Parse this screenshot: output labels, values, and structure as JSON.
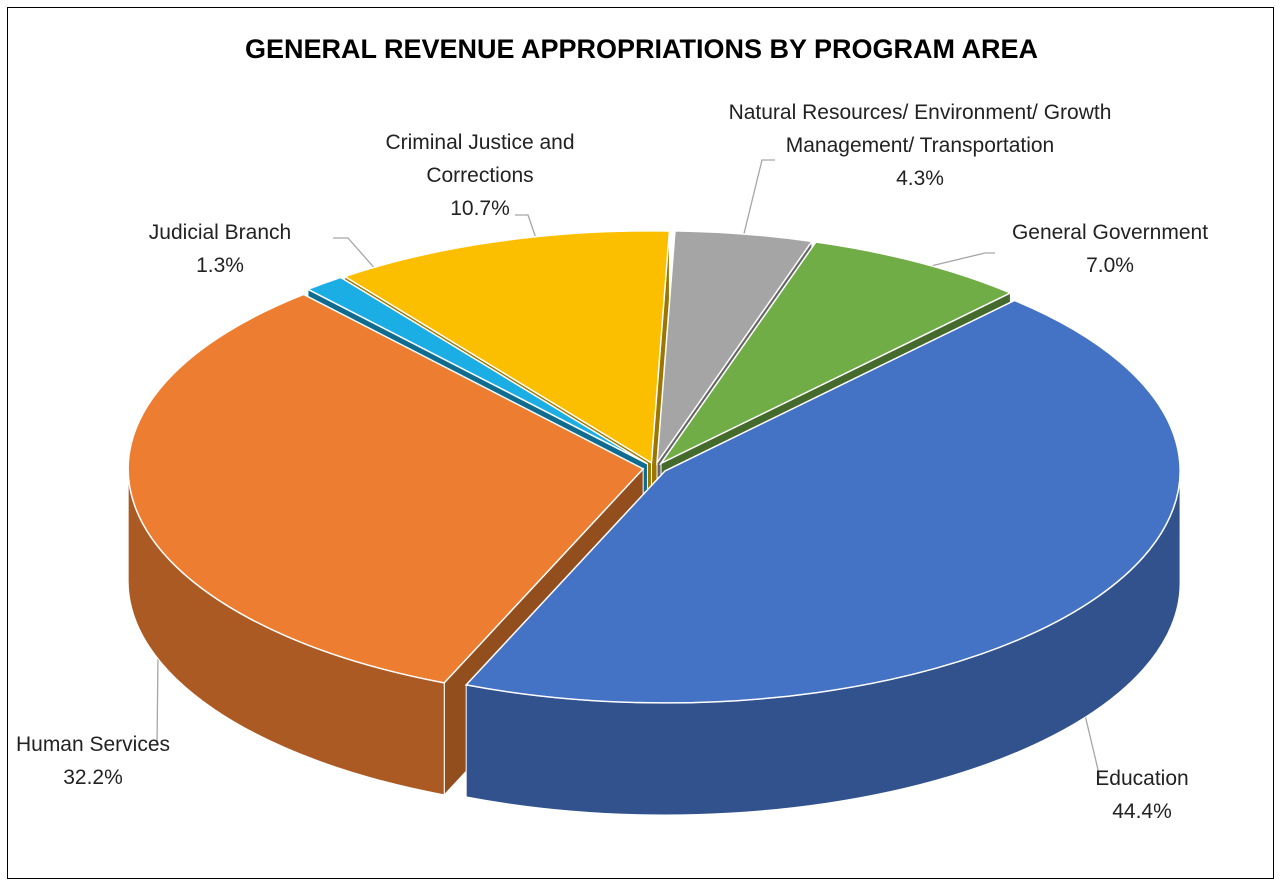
{
  "chart_data": {
    "type": "pie",
    "title": "GENERAL REVENUE APPROPRIATIONS BY PROGRAM AREA",
    "categories": [
      "Natural Resources/ Environment/ Growth Management/ Transportation",
      "General Government",
      "Education",
      "Human Services",
      "Judicial Branch",
      "Criminal Justice and Corrections"
    ],
    "values": [
      4.3,
      7.0,
      44.4,
      32.2,
      1.3,
      10.7
    ],
    "value_labels": [
      "4.3%",
      "7.0%",
      "44.4%",
      "32.2%",
      "1.3%",
      "10.7%"
    ],
    "colors": [
      "#a5a5a5",
      "#70ad47",
      "#4472c4",
      "#ed7d31",
      "#1aaee5",
      "#fbbf00"
    ]
  }
}
